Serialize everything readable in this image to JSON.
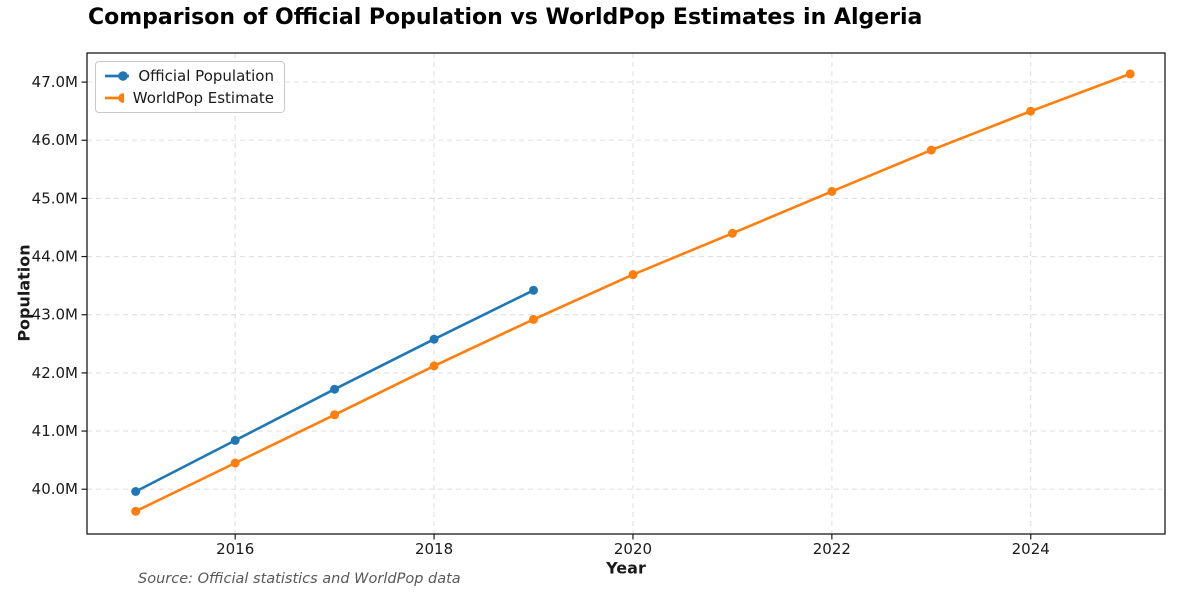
{
  "title": "Comparison of Official Population vs WorldPop Estimates in Algeria",
  "source_note": "Source: Official statistics and WorldPop data",
  "legend": {
    "position": "upper left",
    "items": [
      {
        "label": "Official Population",
        "color": "#1f77b4"
      },
      {
        "label": "WorldPop Estimate",
        "color": "#ff7f0e"
      }
    ]
  },
  "colors": {
    "official_series": "#1f77b4",
    "worldpop_series": "#ff7f0e",
    "grid": "#e0e0e0",
    "axis": "#1a1a1a",
    "title_text": "#000000",
    "source_text": "#595959",
    "background": "#ffffff"
  },
  "chart_data": {
    "type": "line",
    "title": "Comparison of Official Population vs WorldPop Estimates in Algeria",
    "xlabel": "Year",
    "ylabel": "Population",
    "unit": "millions of people",
    "grid": true,
    "grid_style": "dashed",
    "legend_position": "upper left",
    "xlim": [
      2014.51,
      2025.35
    ],
    "ylim_millions": [
      39.23,
      47.5
    ],
    "x_ticks": [
      {
        "v": 2016,
        "label": "2016"
      },
      {
        "v": 2018,
        "label": "2018"
      },
      {
        "v": 2020,
        "label": "2020"
      },
      {
        "v": 2022,
        "label": "2022"
      },
      {
        "v": 2024,
        "label": "2024"
      }
    ],
    "y_ticks": [
      {
        "v": 40,
        "label": "40.0M"
      },
      {
        "v": 41,
        "label": "41.0M"
      },
      {
        "v": 42,
        "label": "42.0M"
      },
      {
        "v": 43,
        "label": "43.0M"
      },
      {
        "v": 44,
        "label": "44.0M"
      },
      {
        "v": 45,
        "label": "45.0M"
      },
      {
        "v": 46,
        "label": "46.0M"
      },
      {
        "v": 47,
        "label": "47.0M"
      }
    ],
    "series": [
      {
        "name": "Official Population",
        "color": "#1f77b4",
        "x": [
          2015,
          2016,
          2017,
          2018,
          2019
        ],
        "y_millions": [
          39.96,
          40.84,
          41.72,
          42.58,
          43.42
        ]
      },
      {
        "name": "WorldPop Estimate",
        "color": "#ff7f0e",
        "x": [
          2015,
          2016,
          2017,
          2018,
          2019,
          2020,
          2021,
          2022,
          2023,
          2024,
          2025
        ],
        "y_millions": [
          39.62,
          40.45,
          41.28,
          42.12,
          42.92,
          43.69,
          44.4,
          45.12,
          45.83,
          46.5,
          47.14
        ]
      }
    ]
  }
}
